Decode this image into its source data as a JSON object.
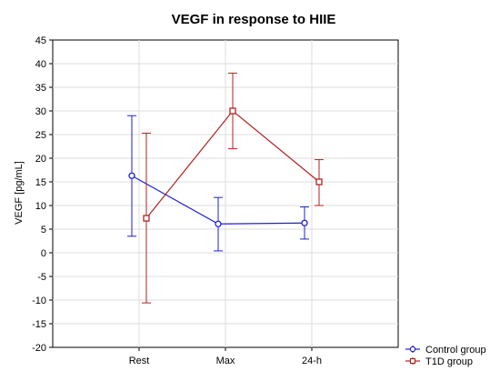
{
  "chart_data": {
    "type": "line",
    "title": "VEGF in response to HIIE",
    "xlabel": "",
    "ylabel": "VEGF [pg/mL]",
    "categories": [
      "Rest",
      "Max",
      "24-h"
    ],
    "ylim": [
      -20,
      45
    ],
    "yticks": [
      -20,
      -15,
      -10,
      -5,
      0,
      5,
      10,
      15,
      20,
      25,
      30,
      35,
      40,
      45
    ],
    "grid": true,
    "legend_position": "bottom-right",
    "series": [
      {
        "name": "Control group",
        "color": "#1f1fd6",
        "marker": "circle",
        "values": [
          16.3,
          6.1,
          6.3
        ],
        "error_low": [
          3.5,
          0.4,
          2.9
        ],
        "error_high": [
          29.0,
          11.7,
          9.7
        ]
      },
      {
        "name": "T1D group",
        "color": "#b22222",
        "marker": "square",
        "values": [
          7.3,
          30.0,
          15.0
        ],
        "error_low": [
          -10.6,
          22.0,
          10.0
        ],
        "error_high": [
          25.3,
          38.0,
          19.7
        ]
      }
    ]
  }
}
